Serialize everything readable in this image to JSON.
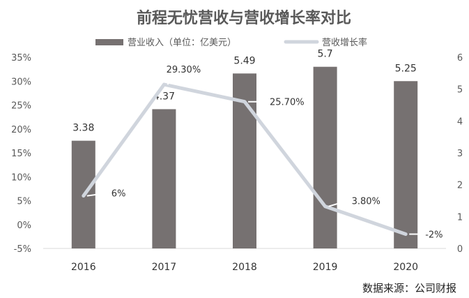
{
  "chart_data": {
    "type": "bar",
    "title": "前程无忧营收与营收增长率对比",
    "categories": [
      "2016",
      "2017",
      "2018",
      "2019",
      "2020"
    ],
    "series": [
      {
        "name": "营业收入（单位：亿美元）",
        "type": "bar",
        "axis": "right",
        "values": [
          3.38,
          4.37,
          5.49,
          5.7,
          5.25
        ],
        "data_labels": [
          "3.38",
          "4.37",
          "5.49",
          "5.7",
          "5.25"
        ],
        "color": "#767171"
      },
      {
        "name": "营收增长率",
        "type": "line",
        "axis": "left",
        "values": [
          6,
          29.3,
          25.7,
          3.8,
          -2
        ],
        "data_labels": [
          "6%",
          "29.30%",
          "25.70%",
          "3.80%",
          "-2%"
        ],
        "color": "#d0d5dd"
      }
    ],
    "left_axis": {
      "ylim": [
        -5,
        35
      ],
      "ticks": [
        "-5%",
        "0%",
        "5%",
        "10%",
        "15%",
        "20%",
        "25%",
        "30%",
        "35%"
      ]
    },
    "right_axis": {
      "ylim": [
        0,
        6
      ],
      "ticks": [
        "0",
        "1",
        "2",
        "3",
        "4",
        "5",
        "6"
      ]
    },
    "legend_position": "top",
    "grid": false
  },
  "source_text": "数据来源：公司财报"
}
